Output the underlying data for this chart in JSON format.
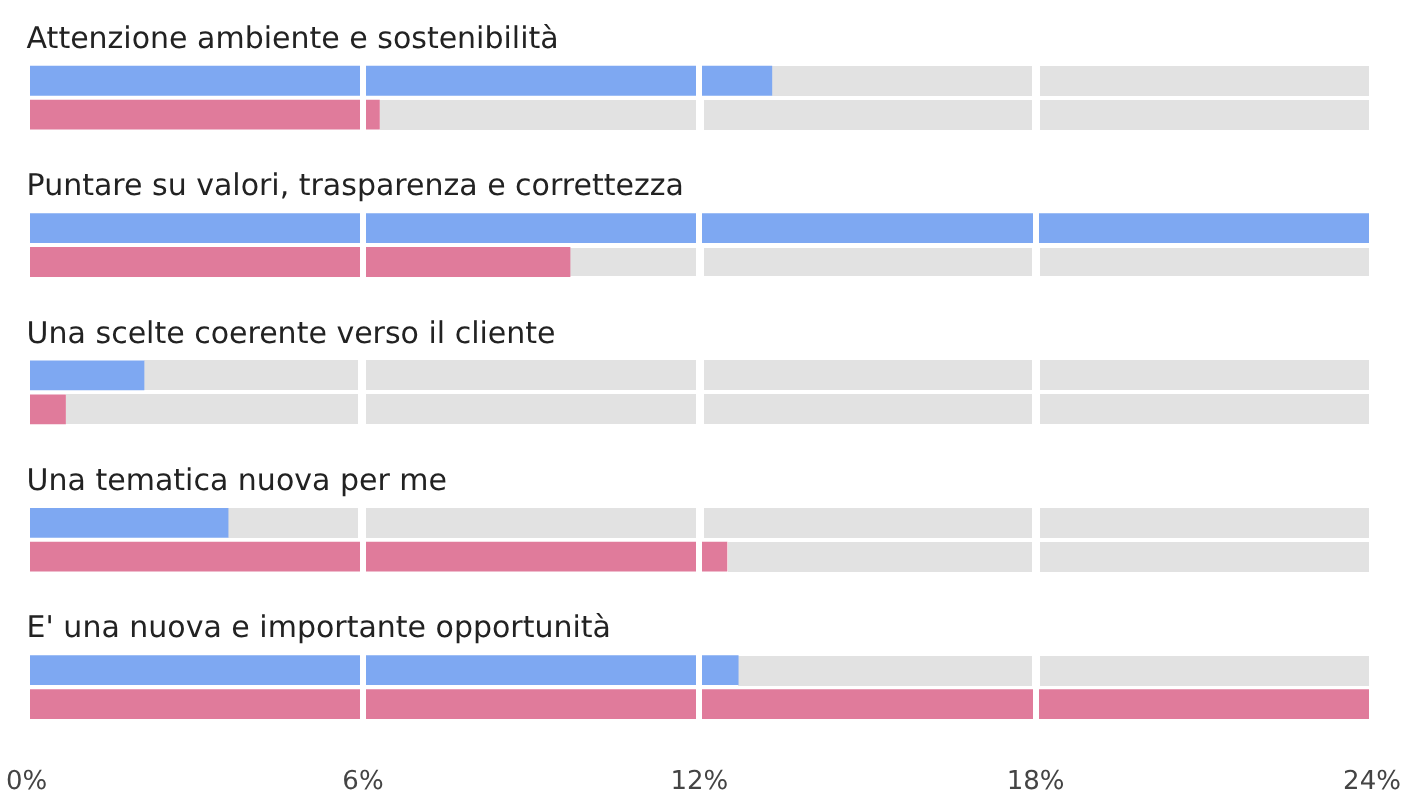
{
  "chart_data": {
    "type": "bar",
    "orientation": "horizontal",
    "categories": [
      "Attenzione ambiente e sostenibilità",
      "Puntare su valori, trasparenza e correttezza",
      "Una scelte coerente verso il cliente",
      "Una tematica nuova per me",
      "E' una nuova e importante opportunità"
    ],
    "series": [
      {
        "color": "#7ea8f2",
        "values": [
          13.3,
          24,
          2.1,
          3.6,
          12.7
        ]
      },
      {
        "color": "#e07b9b",
        "values": [
          6.3,
          9.7,
          0.7,
          12.5,
          24
        ]
      }
    ],
    "xlim": [
      0,
      24
    ],
    "xticks": [
      {
        "value": 0,
        "label": "0%"
      },
      {
        "value": 6,
        "label": "6%"
      },
      {
        "value": 12,
        "label": "12%"
      },
      {
        "value": 18,
        "label": "18%"
      },
      {
        "value": 24,
        "label": "24%"
      }
    ],
    "grid": "x",
    "legend": false
  }
}
